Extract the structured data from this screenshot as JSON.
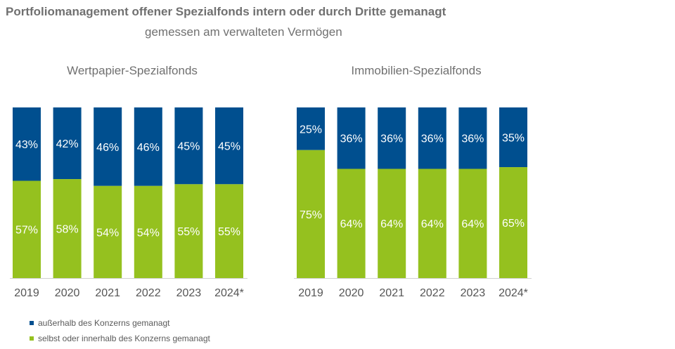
{
  "title": "Portfoliomanagement offener Spezialfonds intern oder durch Dritte gemanagt",
  "subtitle": "gemessen am verwalteten Vermögen",
  "colors": {
    "extern": "#004f8f",
    "intern": "#95c11f",
    "axis": "#d0d0d0",
    "panel_title": "#707070",
    "tick": "#555555"
  },
  "legend": [
    {
      "label": "außerhalb des Konzerns gemanagt",
      "color": "#004f8f"
    },
    {
      "label": "selbst oder innerhalb des Konzerns gemanagt",
      "color": "#95c11f"
    }
  ],
  "chart_data": [
    {
      "type": "bar",
      "stacked": true,
      "percent": true,
      "title": "Wertpapier-Spezialfonds",
      "categories": [
        "2019",
        "2020",
        "2021",
        "2022",
        "2023",
        "2024*"
      ],
      "series": [
        {
          "name": "selbst oder innerhalb des Konzerns gemanagt",
          "values": [
            57,
            58,
            54,
            54,
            55,
            55
          ]
        },
        {
          "name": "außerhalb des Konzerns gemanagt",
          "values": [
            43,
            42,
            46,
            46,
            45,
            45
          ]
        }
      ]
    },
    {
      "type": "bar",
      "stacked": true,
      "percent": true,
      "title": "Immobilien-Spezialfonds",
      "categories": [
        "2019",
        "2020",
        "2021",
        "2022",
        "2023",
        "2024*"
      ],
      "series": [
        {
          "name": "selbst oder innerhalb des Konzerns gemanagt",
          "values": [
            75,
            64,
            64,
            64,
            64,
            65
          ]
        },
        {
          "name": "außerhalb des Konzerns gemanagt",
          "values": [
            25,
            36,
            36,
            36,
            36,
            35
          ]
        }
      ]
    }
  ]
}
